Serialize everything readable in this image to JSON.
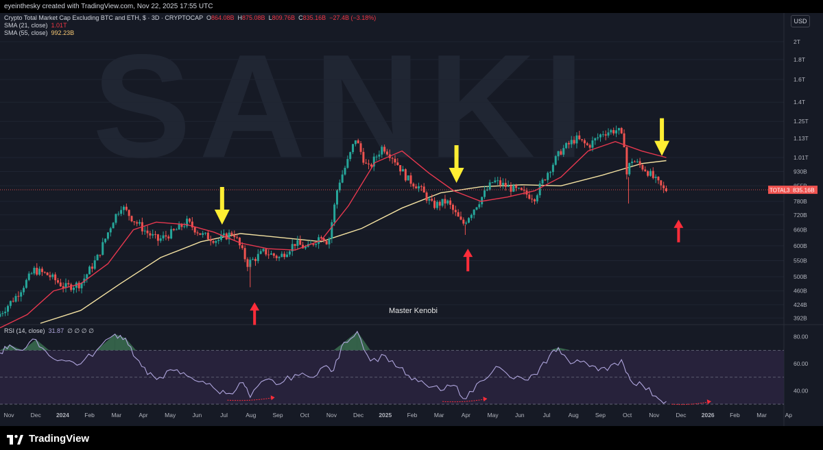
{
  "header": {
    "created_by": "eyeinthesky created with TradingView.com, Nov 22, 2025 17:55 UTC"
  },
  "legend": {
    "symbol": "Crypto Total Market Cap Excluding BTC and ETH, $ · 3D · CRYPTOCAP",
    "o_label": "O",
    "o_value": "864.08B",
    "h_label": "H",
    "h_value": "875.08B",
    "l_label": "L",
    "l_value": "809.76B",
    "c_label": "C",
    "c_value": "835.16B",
    "change": "−27.4B (−3.18%)",
    "sma21_label": "SMA (21, close)",
    "sma21_value": "1.01T",
    "sma55_label": "SMA (55, close)",
    "sma55_value": "992.23B",
    "rsi_label": "RSI (14, close)",
    "rsi_value": "31.87",
    "rsi_extra": "∅ ∅ ∅ ∅"
  },
  "currency": "USD",
  "price_tag": {
    "symbol": "TOTAL3",
    "value": "835.16B"
  },
  "annotation_text": "Master Kenobi",
  "watermark": "SANKI",
  "footer": {
    "brand": "TradingView"
  },
  "colors": {
    "background": "#161a25",
    "up": "#26a69a",
    "down": "#ef5350",
    "sma21": "#e8384f",
    "sma55": "#f5e3a3",
    "rsi": "#b0a6de",
    "arrow_yellow": "#ffee33",
    "arrow_red": "#ff2d3a"
  },
  "chart_data": [
    {
      "type": "candlestick",
      "title": "Crypto Total Market Cap Excluding BTC and ETH, $ · 3D · CRYPTOCAP",
      "x_ticks": [
        "Nov",
        "Dec",
        "2024",
        "Feb",
        "Mar",
        "Apr",
        "May",
        "Jun",
        "Jul",
        "Aug",
        "Sep",
        "Oct",
        "Nov",
        "Dec",
        "2025",
        "Feb",
        "Mar",
        "Apr",
        "May",
        "Jun",
        "Jul",
        "Aug",
        "Sep",
        "Oct",
        "Nov",
        "Dec",
        "2026",
        "Feb",
        "Mar",
        "Ap"
      ],
      "y_ticks": [
        "2T",
        "1.8T",
        "1.6T",
        "1.4T",
        "1.25T",
        "1.13T",
        "1.01T",
        "930B",
        "855B",
        "780B",
        "720B",
        "660B",
        "600B",
        "550B",
        "500B",
        "460B",
        "424B",
        "392B"
      ],
      "y_scale": "log",
      "x_range": [
        "2023-10-25",
        "2026-04-05"
      ],
      "y_range_billion": [
        380,
        2150
      ],
      "price_path_billion": [
        [
          "2023-10-25",
          395
        ],
        [
          "2023-11-15",
          445
        ],
        [
          "2023-12-06",
          520
        ],
        [
          "2023-12-22",
          505
        ],
        [
          "2024-01-10",
          470
        ],
        [
          "2024-01-28",
          480
        ],
        [
          "2024-02-16",
          560
        ],
        [
          "2024-03-05",
          700
        ],
        [
          "2024-03-14",
          760
        ],
        [
          "2024-03-28",
          700
        ],
        [
          "2024-04-12",
          650
        ],
        [
          "2024-04-25",
          620
        ],
        [
          "2024-05-12",
          650
        ],
        [
          "2024-05-28",
          690
        ],
        [
          "2024-06-14",
          640
        ],
        [
          "2024-07-02",
          620
        ],
        [
          "2024-07-20",
          650
        ],
        [
          "2024-08-05",
          540
        ],
        [
          "2024-08-24",
          580
        ],
        [
          "2024-09-10",
          560
        ],
        [
          "2024-09-28",
          610
        ],
        [
          "2024-10-12",
          590
        ],
        [
          "2024-10-28",
          640
        ],
        [
          "2024-11-05",
          610
        ],
        [
          "2024-11-16",
          860
        ],
        [
          "2024-11-28",
          1000
        ],
        [
          "2024-12-06",
          1130
        ],
        [
          "2024-12-20",
          940
        ],
        [
          "2025-01-06",
          1080
        ],
        [
          "2025-01-18",
          1010
        ],
        [
          "2025-02-03",
          890
        ],
        [
          "2025-02-16",
          850
        ],
        [
          "2025-03-04",
          760
        ],
        [
          "2025-03-20",
          780
        ],
        [
          "2025-04-07",
          680
        ],
        [
          "2025-04-22",
          760
        ],
        [
          "2025-05-12",
          880
        ],
        [
          "2025-05-28",
          850
        ],
        [
          "2025-06-14",
          820
        ],
        [
          "2025-06-28",
          800
        ],
        [
          "2025-07-12",
          920
        ],
        [
          "2025-07-28",
          1050
        ],
        [
          "2025-08-14",
          1130
        ],
        [
          "2025-08-28",
          1080
        ],
        [
          "2025-09-14",
          1170
        ],
        [
          "2025-10-01",
          1190
        ],
        [
          "2025-10-08",
          1100
        ],
        [
          "2025-10-10",
          900
        ],
        [
          "2025-10-16",
          1000
        ],
        [
          "2025-11-02",
          940
        ],
        [
          "2025-11-15",
          870
        ],
        [
          "2025-11-22",
          835
        ]
      ],
      "sma21_path_billion": [
        [
          "2023-10-25",
          370
        ],
        [
          "2023-11-25",
          400
        ],
        [
          "2023-12-25",
          460
        ],
        [
          "2024-01-25",
          480
        ],
        [
          "2024-02-25",
          540
        ],
        [
          "2024-03-25",
          660
        ],
        [
          "2024-04-20",
          690
        ],
        [
          "2024-05-25",
          680
        ],
        [
          "2024-06-25",
          650
        ],
        [
          "2024-07-25",
          610
        ],
        [
          "2024-08-25",
          590
        ],
        [
          "2024-09-25",
          585
        ],
        [
          "2024-10-25",
          620
        ],
        [
          "2024-11-25",
          760
        ],
        [
          "2024-12-25",
          980
        ],
        [
          "2025-01-25",
          1050
        ],
        [
          "2025-02-25",
          920
        ],
        [
          "2025-03-25",
          830
        ],
        [
          "2025-04-25",
          780
        ],
        [
          "2025-05-25",
          800
        ],
        [
          "2025-06-25",
          830
        ],
        [
          "2025-07-25",
          900
        ],
        [
          "2025-08-25",
          1050
        ],
        [
          "2025-09-25",
          1110
        ],
        [
          "2025-10-25",
          1050
        ],
        [
          "2025-11-22",
          1010
        ]
      ],
      "sma55_path_billion": [
        [
          "2023-12-10",
          380
        ],
        [
          "2024-01-25",
          410
        ],
        [
          "2024-03-10",
          480
        ],
        [
          "2024-04-25",
          560
        ],
        [
          "2024-06-10",
          615
        ],
        [
          "2024-07-25",
          645
        ],
        [
          "2024-09-10",
          630
        ],
        [
          "2024-10-25",
          615
        ],
        [
          "2024-12-10",
          665
        ],
        [
          "2025-01-25",
          750
        ],
        [
          "2025-03-10",
          820
        ],
        [
          "2025-04-25",
          850
        ],
        [
          "2025-06-10",
          860
        ],
        [
          "2025-07-25",
          855
        ],
        [
          "2025-09-10",
          910
        ],
        [
          "2025-10-25",
          975
        ],
        [
          "2025-11-22",
          992
        ]
      ],
      "current_price_billion": 835.16,
      "markers": [
        {
          "type": "down-arrow",
          "color": "yellow",
          "date": "2024-07-04",
          "price_billion": 680
        },
        {
          "type": "down-arrow",
          "color": "yellow",
          "date": "2025-03-28",
          "price_billion": 870
        },
        {
          "type": "down-arrow",
          "color": "yellow",
          "date": "2025-11-17",
          "price_billion": 1020
        },
        {
          "type": "up-arrow",
          "color": "red",
          "date": "2024-08-10",
          "price_billion": 430
        },
        {
          "type": "up-arrow",
          "color": "red",
          "date": "2025-04-10",
          "price_billion": 590
        },
        {
          "type": "up-arrow",
          "color": "red",
          "date": "2025-12-06",
          "price_billion": 700
        }
      ]
    },
    {
      "type": "line",
      "title": "RSI (14, close)",
      "y_ticks": [
        "80.00",
        "60.00",
        "40.00"
      ],
      "y_range": [
        28,
        88
      ],
      "overbought": 70,
      "mid": 50,
      "oversold": 30,
      "rsi_path": [
        [
          "2023-10-25",
          68
        ],
        [
          "2023-11-05",
          74
        ],
        [
          "2023-11-20",
          70
        ],
        [
          "2023-12-05",
          78
        ],
        [
          "2023-12-20",
          66
        ],
        [
          "2024-01-08",
          62
        ],
        [
          "2024-01-25",
          60
        ],
        [
          "2024-02-12",
          70
        ],
        [
          "2024-03-04",
          82
        ],
        [
          "2024-03-16",
          79
        ],
        [
          "2024-03-28",
          64
        ],
        [
          "2024-04-10",
          52
        ],
        [
          "2024-04-24",
          50
        ],
        [
          "2024-05-10",
          55
        ],
        [
          "2024-05-25",
          51
        ],
        [
          "2024-06-12",
          47
        ],
        [
          "2024-06-28",
          40
        ],
        [
          "2024-07-12",
          38
        ],
        [
          "2024-07-28",
          46
        ],
        [
          "2024-08-05",
          35
        ],
        [
          "2024-08-22",
          48
        ],
        [
          "2024-09-08",
          45
        ],
        [
          "2024-09-25",
          52
        ],
        [
          "2024-10-12",
          50
        ],
        [
          "2024-10-28",
          58
        ],
        [
          "2024-11-08",
          55
        ],
        [
          "2024-11-20",
          76
        ],
        [
          "2024-12-05",
          84
        ],
        [
          "2024-12-20",
          62
        ],
        [
          "2025-01-06",
          66
        ],
        [
          "2025-01-22",
          57
        ],
        [
          "2025-02-05",
          48
        ],
        [
          "2025-02-20",
          45
        ],
        [
          "2025-03-10",
          40
        ],
        [
          "2025-03-25",
          44
        ],
        [
          "2025-04-08",
          34
        ],
        [
          "2025-04-24",
          47
        ],
        [
          "2025-05-12",
          58
        ],
        [
          "2025-05-28",
          50
        ],
        [
          "2025-06-14",
          48
        ],
        [
          "2025-06-28",
          52
        ],
        [
          "2025-07-12",
          66
        ],
        [
          "2025-07-22",
          72
        ],
        [
          "2025-08-05",
          60
        ],
        [
          "2025-08-20",
          62
        ],
        [
          "2025-09-02",
          58
        ],
        [
          "2025-09-16",
          55
        ],
        [
          "2025-10-02",
          63
        ],
        [
          "2025-10-12",
          48
        ],
        [
          "2025-10-26",
          44
        ],
        [
          "2025-11-10",
          36
        ],
        [
          "2025-11-22",
          32
        ]
      ],
      "markers": [
        {
          "type": "divergence-arrow",
          "color": "red",
          "from": "2024-07-10",
          "to": "2024-09-02",
          "rsi": 34
        },
        {
          "type": "divergence-arrow",
          "color": "red",
          "from": "2025-03-12",
          "to": "2025-05-02",
          "rsi": 33
        },
        {
          "type": "divergence-arrow",
          "color": "red",
          "from": "2025-11-28",
          "to": "2026-01-12",
          "rsi": 31
        }
      ]
    }
  ]
}
